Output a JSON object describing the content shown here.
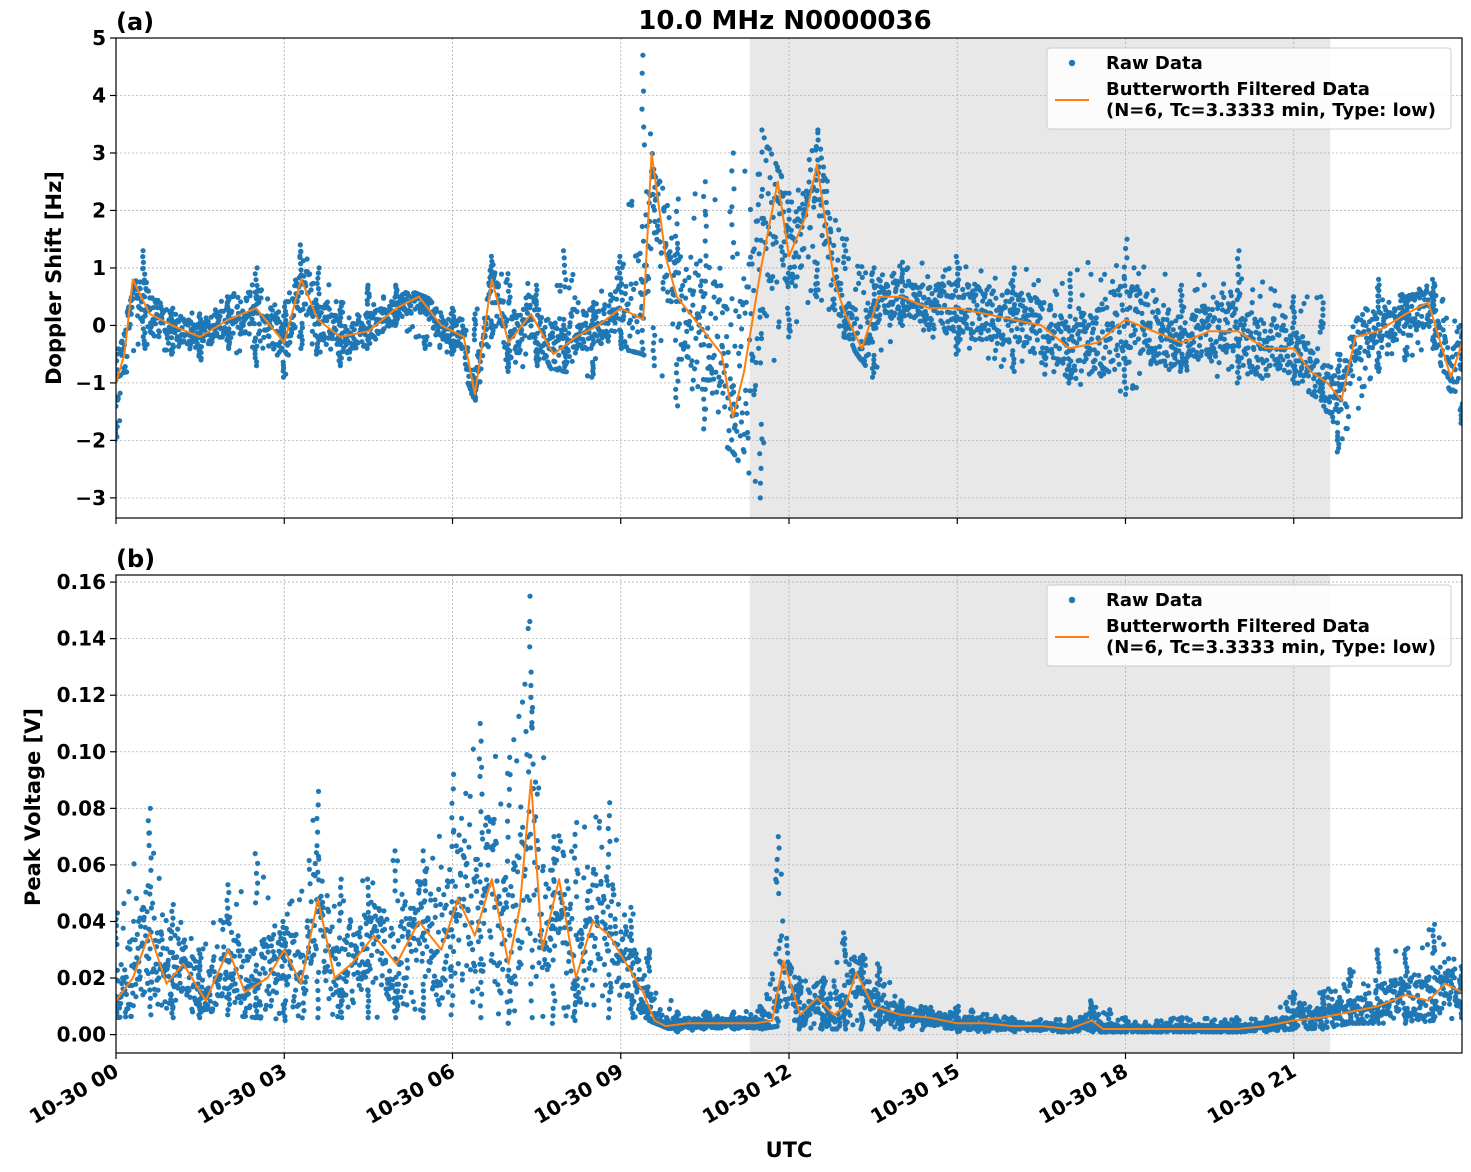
{
  "figure": {
    "title": "10.0 MHz N0000036",
    "xlabel": "UTC",
    "x_tick_labels": [
      "10-30 00",
      "10-30 03",
      "10-30 06",
      "10-30 09",
      "10-30 12",
      "10-30 15",
      "10-30 18",
      "10-30 21"
    ]
  },
  "chart_data": [
    {
      "type": "scatter",
      "panel_label": "(a)",
      "ylabel": "Doppler Shift [Hz]",
      "xlim": [
        0,
        24
      ],
      "ylim": [
        -3.35,
        5.0
      ],
      "y_ticks": [
        -3,
        -2,
        -1,
        0,
        1,
        2,
        3,
        4,
        5
      ],
      "y_tick_labels": [
        "−3",
        "−2",
        "−1",
        "0",
        "1",
        "2",
        "3",
        "4",
        "5"
      ],
      "grid": true,
      "legend_position": "top-right",
      "shaded_interval_hours": [
        11.3,
        21.65
      ],
      "series": [
        {
          "name": "Raw Data",
          "style": "points",
          "color": "#1f77b4",
          "x": [
            0,
            0.5,
            1,
            1.5,
            2,
            2.5,
            3,
            3.3,
            3.6,
            4,
            4.5,
            5,
            5.5,
            6,
            6.4,
            6.7,
            7,
            7.5,
            8,
            8.5,
            9,
            9.4,
            9.6,
            10,
            10.5,
            11,
            11.5,
            12,
            12.5,
            13,
            13.5,
            14,
            15,
            16,
            17,
            18,
            19,
            20,
            21,
            21.5,
            21.8,
            22.5,
            23,
            23.5,
            24
          ],
          "low": [
            -2.0,
            -0.4,
            -0.5,
            -0.6,
            -0.4,
            -0.7,
            -0.9,
            -0.4,
            -0.5,
            -0.7,
            -0.4,
            0.0,
            -0.4,
            -0.5,
            -1.3,
            -0.2,
            -0.8,
            -0.7,
            -0.8,
            -0.9,
            -0.4,
            -0.5,
            -0.7,
            -1.4,
            -1.8,
            -2.2,
            -3.0,
            -0.2,
            0.5,
            -0.2,
            -0.9,
            0.0,
            -0.5,
            -0.8,
            -1.0,
            -1.2,
            -0.8,
            -1.0,
            -1.0,
            -1.3,
            -2.2,
            -0.8,
            -0.6,
            -0.4,
            -1.7
          ],
          "high": [
            -0.5,
            1.3,
            0.3,
            0.2,
            0.5,
            1.0,
            0.4,
            1.4,
            1.0,
            0.4,
            0.7,
            0.7,
            0.5,
            0.3,
            0.2,
            1.2,
            0.9,
            0.7,
            1.3,
            0.4,
            1.2,
            4.7,
            2.6,
            2.2,
            2.5,
            3.0,
            3.4,
            2.3,
            3.4,
            1.5,
            1.0,
            1.1,
            1.2,
            1.0,
            0.9,
            1.5,
            0.7,
            1.3,
            0.5,
            0.5,
            -0.5,
            0.8,
            0.5,
            0.8,
            0.0
          ]
        },
        {
          "name": "Butterworth Filtered Data\n(N=6, Tc=3.3333 min, Type: low)",
          "legend_line1": "Butterworth Filtered Data",
          "legend_line2": "(N=6, Tc=3.3333 min, Type: low)",
          "style": "line",
          "color": "#ff7f0e",
          "x": [
            0,
            0.15,
            0.3,
            0.6,
            1,
            1.5,
            2,
            2.5,
            3,
            3.3,
            3.6,
            4,
            4.5,
            5,
            5.4,
            5.8,
            6.2,
            6.4,
            6.7,
            7,
            7.4,
            7.8,
            8.2,
            8.6,
            9,
            9.4,
            9.55,
            9.8,
            10,
            10.4,
            10.8,
            11.0,
            11.2,
            11.5,
            11.8,
            12.0,
            12.3,
            12.5,
            12.8,
            13.0,
            13.3,
            13.6,
            14,
            14.5,
            15,
            15.5,
            16,
            16.5,
            17,
            17.5,
            18,
            18.5,
            19,
            19.5,
            20,
            20.5,
            21,
            21.3,
            21.6,
            21.85,
            22.1,
            22.5,
            23,
            23.4,
            23.8,
            24
          ],
          "y": [
            -1.0,
            -0.5,
            0.8,
            0.2,
            0.0,
            -0.2,
            0.1,
            0.3,
            -0.3,
            0.8,
            0.1,
            -0.2,
            -0.1,
            0.3,
            0.5,
            0.0,
            -0.2,
            -1.2,
            0.8,
            -0.3,
            0.2,
            -0.5,
            -0.2,
            0.0,
            0.3,
            0.1,
            3.0,
            1.2,
            0.5,
            0.0,
            -0.5,
            -1.6,
            -0.8,
            1.0,
            2.5,
            1.2,
            1.9,
            2.8,
            0.8,
            0.2,
            -0.4,
            0.5,
            0.5,
            0.3,
            0.3,
            0.2,
            0.1,
            0.0,
            -0.4,
            -0.3,
            0.1,
            -0.1,
            -0.3,
            -0.1,
            -0.1,
            -0.4,
            -0.4,
            -0.8,
            -1.0,
            -1.3,
            -0.2,
            -0.1,
            0.2,
            0.4,
            -0.9,
            -0.3
          ]
        }
      ]
    },
    {
      "type": "scatter",
      "panel_label": "(b)",
      "ylabel": "Peak Voltage [V]",
      "xlim": [
        0,
        24
      ],
      "ylim": [
        -0.0065,
        0.1625
      ],
      "y_ticks": [
        0.0,
        0.02,
        0.04,
        0.06,
        0.08,
        0.1,
        0.12,
        0.14,
        0.16
      ],
      "y_tick_labels": [
        "0.00",
        "0.02",
        "0.04",
        "0.06",
        "0.08",
        "0.10",
        "0.12",
        "0.14",
        "0.16"
      ],
      "grid": true,
      "legend_position": "top-right",
      "shaded_interval_hours": [
        11.3,
        21.65
      ],
      "series": [
        {
          "name": "Raw Data",
          "style": "points",
          "color": "#1f77b4",
          "x": [
            0,
            0.6,
            1,
            1.5,
            2,
            2.5,
            3,
            3.6,
            4,
            4.5,
            5,
            5.5,
            6,
            6.5,
            7,
            7.4,
            7.8,
            8.2,
            8.8,
            9.2,
            9.5,
            10,
            10.5,
            11,
            11.5,
            11.8,
            12.2,
            12.6,
            13.0,
            13.3,
            13.6,
            14,
            15,
            16,
            17,
            17.4,
            18,
            19,
            20,
            20.5,
            21,
            21.5,
            22,
            22.5,
            23,
            23.5,
            24
          ],
          "low": [
            0.006,
            0.007,
            0.006,
            0.006,
            0.007,
            0.006,
            0.005,
            0.006,
            0.006,
            0.006,
            0.006,
            0.006,
            0.007,
            0.006,
            0.004,
            0.006,
            0.004,
            0.005,
            0.006,
            0.006,
            0.005,
            0.001,
            0.002,
            0.002,
            0.002,
            0.003,
            0.002,
            0.002,
            0.002,
            0.002,
            0.002,
            0.002,
            0.001,
            0.001,
            0.001,
            0.001,
            0.001,
            0.001,
            0.001,
            0.001,
            0.002,
            0.002,
            0.004,
            0.004,
            0.004,
            0.005,
            0.006
          ],
          "high": [
            0.043,
            0.08,
            0.046,
            0.03,
            0.053,
            0.064,
            0.04,
            0.086,
            0.055,
            0.055,
            0.065,
            0.065,
            0.092,
            0.11,
            0.098,
            0.155,
            0.07,
            0.075,
            0.082,
            0.045,
            0.03,
            0.008,
            0.008,
            0.008,
            0.01,
            0.07,
            0.02,
            0.02,
            0.036,
            0.028,
            0.025,
            0.012,
            0.01,
            0.006,
            0.006,
            0.012,
            0.006,
            0.006,
            0.006,
            0.006,
            0.015,
            0.015,
            0.023,
            0.03,
            0.03,
            0.039,
            0.024
          ]
        },
        {
          "name": "Butterworth Filtered Data\n(N=6, Tc=3.3333 min, Type: low)",
          "legend_line1": "Butterworth Filtered Data",
          "legend_line2": "(N=6, Tc=3.3333 min, Type: low)",
          "style": "line",
          "color": "#ff7f0e",
          "x": [
            0,
            0.3,
            0.6,
            0.9,
            1.2,
            1.6,
            2.0,
            2.3,
            2.7,
            3.0,
            3.3,
            3.6,
            3.9,
            4.2,
            4.6,
            5.0,
            5.4,
            5.8,
            6.1,
            6.4,
            6.7,
            7.0,
            7.2,
            7.4,
            7.6,
            7.9,
            8.2,
            8.5,
            8.8,
            9.1,
            9.4,
            9.6,
            9.8,
            10.2,
            10.6,
            11.0,
            11.4,
            11.7,
            11.9,
            12.2,
            12.5,
            12.8,
            13.0,
            13.2,
            13.5,
            14.0,
            14.5,
            15,
            15.5,
            16,
            16.5,
            17,
            17.4,
            17.6,
            18,
            19,
            20,
            20.5,
            21,
            21.5,
            22,
            22.5,
            23,
            23.4,
            23.7,
            24
          ],
          "y": [
            0.012,
            0.02,
            0.036,
            0.018,
            0.025,
            0.012,
            0.03,
            0.015,
            0.02,
            0.03,
            0.018,
            0.048,
            0.02,
            0.025,
            0.035,
            0.025,
            0.04,
            0.03,
            0.048,
            0.035,
            0.055,
            0.025,
            0.045,
            0.09,
            0.03,
            0.055,
            0.02,
            0.04,
            0.035,
            0.025,
            0.015,
            0.005,
            0.003,
            0.004,
            0.004,
            0.004,
            0.004,
            0.005,
            0.026,
            0.007,
            0.013,
            0.007,
            0.01,
            0.022,
            0.01,
            0.007,
            0.006,
            0.004,
            0.004,
            0.003,
            0.003,
            0.002,
            0.005,
            0.002,
            0.002,
            0.002,
            0.002,
            0.003,
            0.005,
            0.006,
            0.008,
            0.01,
            0.014,
            0.012,
            0.018,
            0.015
          ]
        }
      ]
    }
  ]
}
